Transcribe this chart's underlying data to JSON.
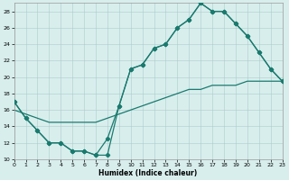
{
  "line1_x": [
    0,
    1,
    2,
    3,
    4,
    5,
    6,
    7,
    8,
    9,
    10,
    11,
    12,
    13,
    14,
    15,
    16,
    17,
    18,
    19,
    20,
    21,
    22,
    23
  ],
  "line1_y": [
    17.0,
    15.0,
    13.5,
    12.0,
    12.0,
    11.0,
    11.0,
    10.5,
    10.5,
    16.5,
    21.0,
    21.5,
    23.5,
    24.0,
    26.0,
    27.0,
    29.0,
    28.0,
    28.0,
    26.5,
    25.0,
    23.0,
    21.0,
    19.5
  ],
  "line2_x": [
    0,
    1,
    2,
    3,
    4,
    5,
    6,
    7,
    8,
    9,
    10,
    11,
    12,
    13,
    14,
    15,
    16,
    17,
    18,
    19,
    20,
    21,
    22,
    23
  ],
  "line2_y": [
    17.0,
    15.0,
    13.5,
    12.0,
    12.0,
    11.0,
    11.0,
    10.5,
    12.5,
    16.5,
    21.0,
    21.5,
    23.5,
    24.0,
    26.0,
    27.0,
    29.0,
    28.0,
    28.0,
    26.5,
    25.0,
    23.0,
    21.0,
    19.5
  ],
  "line3_x": [
    0,
    1,
    2,
    3,
    4,
    5,
    6,
    7,
    8,
    9,
    10,
    11,
    12,
    13,
    14,
    15,
    16,
    17,
    18,
    19,
    20,
    21,
    22,
    23
  ],
  "line3_y": [
    16.0,
    15.5,
    15.0,
    14.5,
    14.5,
    14.5,
    14.5,
    14.5,
    15.0,
    15.5,
    16.0,
    16.5,
    17.0,
    17.5,
    18.0,
    18.5,
    18.5,
    19.0,
    19.0,
    19.0,
    19.5,
    19.5,
    19.5,
    19.5
  ],
  "color": "#1a7a6e",
  "bg_color": "#d8eeed",
  "grid_color": "#aacccc",
  "xlabel": "Humidex (Indice chaleur)",
  "ylim": [
    10,
    29
  ],
  "xlim": [
    0,
    23
  ],
  "yticks": [
    10,
    12,
    14,
    16,
    18,
    20,
    22,
    24,
    26,
    28
  ],
  "xticks": [
    0,
    1,
    2,
    3,
    4,
    5,
    6,
    7,
    8,
    9,
    10,
    11,
    12,
    13,
    14,
    15,
    16,
    17,
    18,
    19,
    20,
    21,
    22,
    23
  ],
  "marker": "D",
  "markersize": 2.2,
  "linewidth": 0.9,
  "tick_fontsize": 4.5,
  "xlabel_fontsize": 5.5
}
